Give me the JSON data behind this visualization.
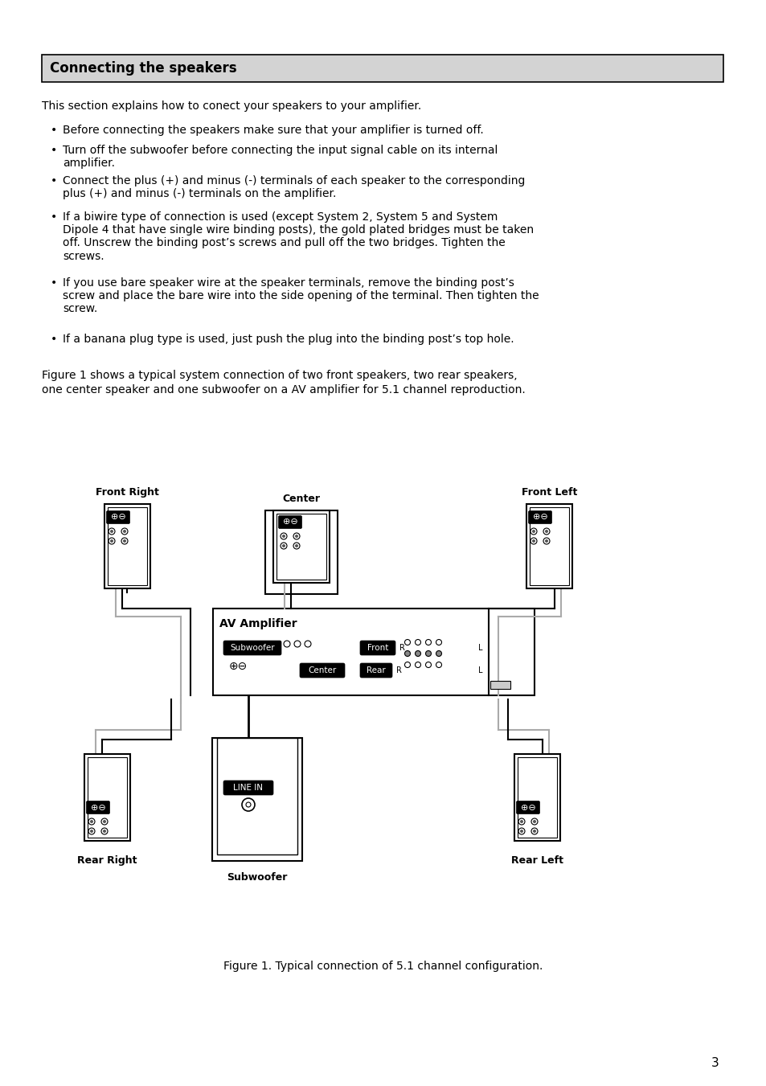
{
  "title": "Connecting the speakers",
  "page_number": "3",
  "intro_text": "This section explains how to conect your speakers to your amplifier.",
  "bullet_points": [
    "Before connecting the speakers make sure that your amplifier is turned off.",
    "Turn off the subwoofer before connecting the input signal cable on its internal\namplifier.",
    "Connect the plus (+) and minus (-) terminals of each speaker to the corresponding\nplus (+) and minus (-) terminals on the amplifier.",
    "If a biwire type of connection is used (except System 2, System 5 and System\nDipole 4 that have single wire binding posts), the gold plated bridges must be taken\noff. Unscrew the binding post’s screws and pull off the two bridges. Tighten the\nscrews.",
    "If you use bare speaker wire at the speaker terminals, remove the binding post’s\nscrew and place the bare wire into the side opening of the terminal. Then tighten the\nscrew.",
    "If a banana plug type is used, just push the plug into the binding post’s top hole."
  ],
  "figure_intro": "Figure 1 shows a typical system connection of two front speakers, two rear speakers,\none center speaker and one subwoofer on a AV amplifier for 5.1 channel reproduction.",
  "figure_caption": "Figure 1. Typical connection of 5.1 channel configuration.",
  "background_color": "#ffffff",
  "text_color": "#000000",
  "header_bg": "#d3d3d3",
  "header_border": "#000000"
}
